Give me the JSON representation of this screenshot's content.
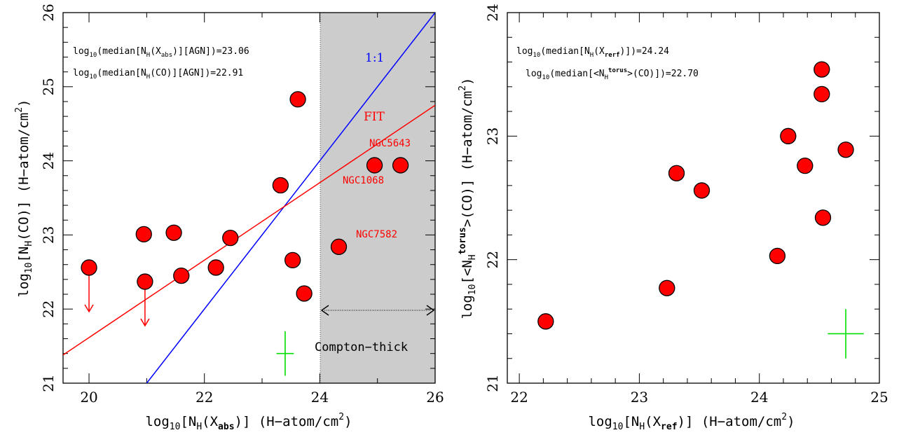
{
  "chart_data": [
    {
      "type": "scatter",
      "xlabel": "log10[NH(Xabs)] (H−atom/cm2)",
      "ylabel": "log10[NH(CO)] (H−atom/cm2)",
      "xlim": [
        19.55,
        26
      ],
      "ylim": [
        21,
        26
      ],
      "xticks": [
        "20",
        "22",
        "24",
        "26"
      ],
      "yticks": [
        "21",
        "22",
        "23",
        "24",
        "25",
        "26"
      ],
      "annotations": {
        "median_abs": "log10(median[NH(Xabs)][AGN])=23.06",
        "median_co": "log10(median[NH(CO)][AGN])=22.91",
        "one_to_one": "1:1",
        "fit": "FIT",
        "compton_thick": "Compton−thick",
        "ngc5643": "NGC5643",
        "ngc1068": "NGC1068",
        "ngc7582": "NGC7582"
      },
      "compton_thick_region": [
        24,
        26
      ],
      "lines": {
        "one_to_one": {
          "color": "#0000ff",
          "from": [
            21,
            21
          ],
          "to": [
            26,
            26
          ]
        },
        "fit": {
          "color": "#ff0000",
          "from": [
            19.55,
            21.38
          ],
          "to": [
            26,
            24.75
          ]
        }
      },
      "points": [
        {
          "x": 20.0,
          "y": 22.56,
          "upper_limit": true
        },
        {
          "x": 20.95,
          "y": 23.01
        },
        {
          "x": 20.97,
          "y": 22.37,
          "upper_limit": true
        },
        {
          "x": 21.47,
          "y": 23.03
        },
        {
          "x": 21.6,
          "y": 22.45
        },
        {
          "x": 22.2,
          "y": 22.56
        },
        {
          "x": 22.45,
          "y": 22.96
        },
        {
          "x": 23.32,
          "y": 23.67
        },
        {
          "x": 23.53,
          "y": 22.66
        },
        {
          "x": 23.62,
          "y": 24.83
        },
        {
          "x": 23.73,
          "y": 22.21
        },
        {
          "x": 24.33,
          "y": 22.84
        },
        {
          "x": 24.95,
          "y": 23.94
        },
        {
          "x": 25.4,
          "y": 23.94
        }
      ],
      "error_cross": {
        "x": 23.4,
        "y": 21.4,
        "dx": 0.15,
        "dy": 0.3,
        "color": "#00dd00"
      }
    },
    {
      "type": "scatter",
      "xlabel": "log10[NH(Xref)] (H−atom/cm2)",
      "ylabel": "log10[<NHtorus>(CO)] (H−atom/cm2)",
      "xlim": [
        21.9,
        25
      ],
      "ylim": [
        21,
        24
      ],
      "xticks": [
        "22",
        "23",
        "24",
        "25"
      ],
      "yticks": [
        "21",
        "22",
        "23",
        "24"
      ],
      "annotations": {
        "median_ref": "log10(median[NH(Xrerf)])=24.24",
        "median_torus": "log10(median[<NHtorus>(CO)])=22.70"
      },
      "points": [
        {
          "x": 22.22,
          "y": 21.5
        },
        {
          "x": 23.23,
          "y": 21.77
        },
        {
          "x": 23.31,
          "y": 22.7
        },
        {
          "x": 23.52,
          "y": 22.56
        },
        {
          "x": 24.15,
          "y": 22.03
        },
        {
          "x": 24.24,
          "y": 23.0
        },
        {
          "x": 24.38,
          "y": 22.76
        },
        {
          "x": 24.52,
          "y": 23.54
        },
        {
          "x": 24.52,
          "y": 23.34
        },
        {
          "x": 24.53,
          "y": 22.34
        },
        {
          "x": 24.72,
          "y": 22.89
        }
      ],
      "error_cross": {
        "x": 24.72,
        "y": 21.4,
        "dx": 0.15,
        "dy": 0.2,
        "color": "#00dd00"
      }
    }
  ]
}
